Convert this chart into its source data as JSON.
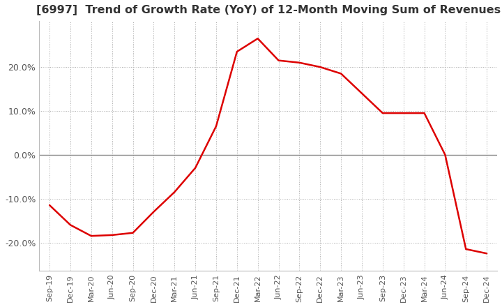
{
  "title": "[6997]  Trend of Growth Rate (YoY) of 12-Month Moving Sum of Revenues",
  "title_fontsize": 11.5,
  "line_color": "#dd0000",
  "background_color": "#ffffff",
  "grid_color": "#aaaaaa",
  "zero_line_color": "#888888",
  "ylim": [
    -0.265,
    0.305
  ],
  "yticks": [
    -0.2,
    -0.1,
    0.0,
    0.1,
    0.2
  ],
  "x_labels": [
    "Sep-19",
    "Dec-19",
    "Mar-20",
    "Jun-20",
    "Sep-20",
    "Dec-20",
    "Mar-21",
    "Jun-21",
    "Sep-21",
    "Dec-21",
    "Mar-22",
    "Jun-22",
    "Sep-22",
    "Dec-22",
    "Mar-23",
    "Jun-23",
    "Sep-23",
    "Dec-23",
    "Mar-24",
    "Jun-24",
    "Sep-24",
    "Dec-24"
  ],
  "y_values": [
    -0.115,
    -0.16,
    -0.185,
    -0.183,
    -0.178,
    -0.13,
    -0.085,
    -0.03,
    0.065,
    0.235,
    0.265,
    0.215,
    0.21,
    0.2,
    0.185,
    0.14,
    0.095,
    0.095,
    0.095,
    0.0,
    -0.215,
    -0.225
  ]
}
